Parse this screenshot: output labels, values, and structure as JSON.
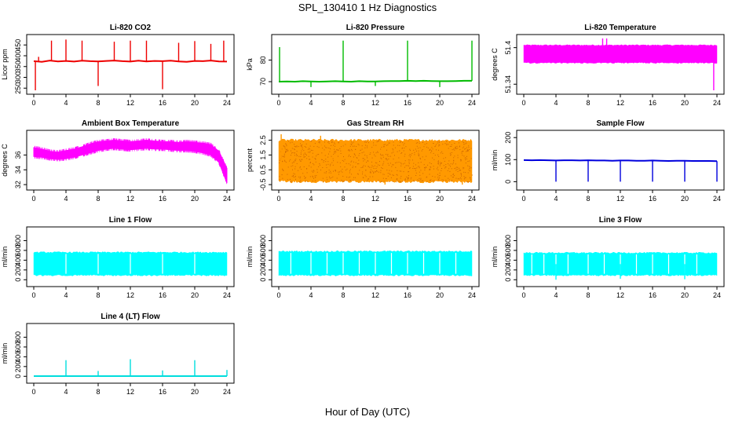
{
  "title": "SPL_130410  1 Hz Diagnostics",
  "xlabel": "Hour of Day (UTC)",
  "chart_data": [
    {
      "type": "line",
      "title": "Li-820 CO2",
      "ylabel": "Licor ppm",
      "color": "#ee0000",
      "x_ticks": [
        0,
        4,
        8,
        12,
        16,
        20,
        24
      ],
      "xlim": [
        0,
        24
      ],
      "y_ticks": [
        250,
        300,
        350,
        400,
        450
      ],
      "ylim": [
        240,
        480
      ],
      "series": [
        {
          "values": [
            375,
            372,
            378,
            374,
            376,
            373,
            377,
            375,
            374,
            376,
            378,
            375,
            373,
            377,
            374,
            376,
            375,
            377,
            374,
            372,
            376,
            375,
            378,
            374,
            373
          ]
        }
      ],
      "spikes": [
        [
          0.2,
          240
        ],
        [
          0.6,
          395
        ],
        [
          2.2,
          470
        ],
        [
          4,
          475
        ],
        [
          6,
          470
        ],
        [
          8,
          260
        ],
        [
          10,
          465
        ],
        [
          12,
          470
        ],
        [
          14,
          470
        ],
        [
          16,
          245
        ],
        [
          18,
          460
        ],
        [
          20,
          468
        ],
        [
          22,
          455
        ],
        [
          23.6,
          470
        ]
      ]
    },
    {
      "type": "line",
      "title": "Li-820 Pressure",
      "ylabel": "kPa",
      "color": "#00bb00",
      "x_ticks": [
        0,
        4,
        8,
        12,
        16,
        20,
        24
      ],
      "xlim": [
        0,
        24
      ],
      "y_ticks": [
        70,
        80
      ],
      "ylim": [
        66,
        90
      ],
      "series": [
        {
          "values": [
            70,
            70.1,
            70,
            70.2,
            70.1,
            70,
            70.1,
            70.2,
            70.1,
            70,
            70.2,
            70.1,
            70.1,
            70.2,
            70.3,
            70.3,
            70.4,
            70.3,
            70.4,
            70.3,
            70.2,
            70.2,
            70.3,
            70.4,
            70.4
          ]
        }
      ],
      "spikes": [
        [
          0.1,
          86
        ],
        [
          4,
          67.5
        ],
        [
          8,
          89
        ],
        [
          12,
          68
        ],
        [
          16,
          89
        ],
        [
          20,
          67.5
        ],
        [
          24,
          89
        ]
      ]
    },
    {
      "type": "area",
      "title": "Li-820 Temperature",
      "ylabel": "degrees C",
      "color": "#ff00ff",
      "x_ticks": [
        0,
        4,
        8,
        12,
        16,
        20,
        24
      ],
      "xlim": [
        0,
        24
      ],
      "y_ticks": [
        51.34,
        51.4
      ],
      "ylim": [
        51.33,
        51.415
      ],
      "band": {
        "low": 51.375,
        "high": 51.404
      },
      "spikes": [
        [
          9.8,
          51.415
        ],
        [
          10.3,
          51.415
        ],
        [
          23.6,
          51.33
        ]
      ]
    },
    {
      "type": "area",
      "title": "Ambient Box Temperature",
      "ylabel": "degrees C",
      "color": "#ff00ff",
      "x_ticks": [
        0,
        4,
        8,
        12,
        16,
        20,
        24
      ],
      "xlim": [
        0,
        24
      ],
      "y_ticks": [
        32,
        34,
        36
      ],
      "ylim": [
        31.8,
        38.8
      ],
      "upper": [
        37,
        36.8,
        36.5,
        36.4,
        36.6,
        36.8,
        37.1,
        37.5,
        37.8,
        37.9,
        38,
        37.9,
        37.8,
        37.9,
        38,
        37.9,
        37.8,
        37.8,
        37.7,
        37.8,
        37.7,
        37.6,
        37.4,
        36.5,
        34.2
      ],
      "lower": [
        35.8,
        35.7,
        35.5,
        35.4,
        35.5,
        35.7,
        36,
        36.3,
        36.6,
        36.8,
        36.9,
        36.8,
        36.7,
        36.8,
        36.9,
        36.8,
        36.8,
        36.7,
        36.6,
        36.6,
        36.5,
        36.3,
        36,
        35,
        32.2
      ]
    },
    {
      "type": "area",
      "title": "Gas Stream RH",
      "ylabel": "percent",
      "color": "#ff9900",
      "x_ticks": [
        0,
        4,
        8,
        12,
        16,
        20,
        24
      ],
      "xlim": [
        0,
        24
      ],
      "y_ticks": [
        -0.5,
        0.5,
        1.5,
        2.5
      ],
      "ylim": [
        -0.6,
        2.9
      ],
      "band": {
        "low": -0.3,
        "high": 2.5
      },
      "spikes": [
        [
          0.3,
          2.9
        ],
        [
          5.2,
          2.8
        ],
        [
          13.2,
          -0.5
        ],
        [
          22.8,
          -0.5
        ]
      ]
    },
    {
      "type": "line",
      "title": "Sample Flow",
      "ylabel": "ml/min",
      "color": "#0000dd",
      "x_ticks": [
        0,
        4,
        8,
        12,
        16,
        20,
        24
      ],
      "xlim": [
        0,
        24
      ],
      "y_ticks": [
        0,
        100,
        200
      ],
      "ylim": [
        -20,
        215
      ],
      "series": [
        {
          "values": [
            98,
            97,
            98,
            97,
            96,
            97,
            97,
            96,
            97,
            96,
            96,
            95,
            96,
            96,
            95,
            95,
            96,
            95,
            94,
            95,
            95,
            94,
            94,
            94,
            93
          ]
        }
      ],
      "spikes": [
        [
          4,
          0
        ],
        [
          8,
          0
        ],
        [
          12,
          0
        ],
        [
          16,
          0
        ],
        [
          20,
          0
        ],
        [
          24,
          0
        ]
      ]
    },
    {
      "type": "area",
      "title": "Line 1 Flow",
      "ylabel": "ml/min",
      "color": "#00ffff",
      "x_ticks": [
        0,
        4,
        8,
        12,
        16,
        20,
        24
      ],
      "xlim": [
        0,
        24
      ],
      "y_ticks": [
        0,
        200,
        400,
        600,
        800
      ],
      "ylim": [
        -60,
        1000
      ],
      "band": {
        "low": 90,
        "high": 560
      },
      "gaps": [
        4,
        8,
        12,
        16,
        20
      ]
    },
    {
      "type": "area",
      "title": "Line 2 Flow",
      "ylabel": "ml/min",
      "color": "#00ffff",
      "x_ticks": [
        0,
        4,
        8,
        12,
        16,
        20,
        24
      ],
      "xlim": [
        0,
        24
      ],
      "y_ticks": [
        0,
        200,
        400,
        600,
        800
      ],
      "ylim": [
        -60,
        1000
      ],
      "band": {
        "low": 90,
        "high": 580
      },
      "gaps": [
        1.5,
        4,
        6,
        8,
        10,
        12,
        14,
        16,
        18,
        20,
        22
      ]
    },
    {
      "type": "area",
      "title": "Line 3 Flow",
      "ylabel": "ml/min",
      "color": "#00ffff",
      "x_ticks": [
        0,
        4,
        8,
        12,
        16,
        20,
        24
      ],
      "xlim": [
        0,
        24
      ],
      "y_ticks": [
        0,
        200,
        400,
        600,
        800
      ],
      "ylim": [
        -60,
        1000
      ],
      "band": {
        "low": 90,
        "high": 550
      },
      "gaps": [
        1,
        2.5,
        4,
        5.5,
        8,
        10,
        12,
        14,
        16,
        18,
        20,
        21.5
      ],
      "spikes": [
        [
          4,
          0
        ],
        [
          12,
          20
        ],
        [
          20,
          10
        ]
      ]
    },
    {
      "type": "line",
      "title": "Line 4 (LT) Flow",
      "ylabel": "ml/min",
      "color": "#00dddd",
      "x_ticks": [
        0,
        4,
        8,
        12,
        16,
        20,
        24
      ],
      "xlim": [
        0,
        24
      ],
      "y_ticks": [
        0,
        200,
        400,
        600,
        800
      ],
      "ylim": [
        -60,
        1000
      ],
      "series": [
        {
          "values": [
            5,
            5,
            5,
            5,
            5,
            5,
            5,
            5,
            5,
            5,
            5,
            5,
            5,
            5,
            5,
            5,
            5,
            5,
            5,
            5,
            5,
            5,
            5,
            5,
            5
          ]
        }
      ],
      "spikes": [
        [
          4,
          330
        ],
        [
          8,
          110
        ],
        [
          12,
          350
        ],
        [
          16,
          120
        ],
        [
          20,
          330
        ],
        [
          24,
          130
        ]
      ]
    }
  ]
}
